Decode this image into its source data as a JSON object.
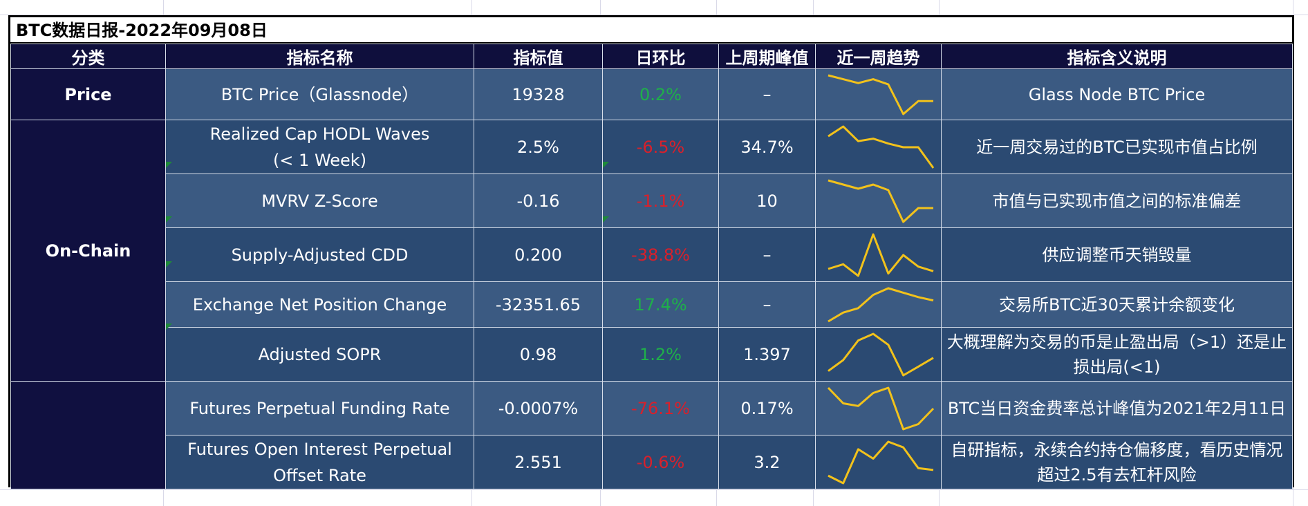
{
  "title": "BTC数据日报-2022年09月08日",
  "headers": [
    "分类",
    "指标名称",
    "指标值",
    "日环比",
    "上周期峰值",
    "近一周趋势",
    "指标含义说明"
  ],
  "categories": {
    "price": "Price",
    "onchain": "On-Chain",
    "futures": ""
  },
  "rows": [
    {
      "name": "BTC Price（Glassnode）",
      "value": "19328",
      "dod": "0.2%",
      "dod_sign": "pos",
      "peak": "–",
      "desc": "Glass Node BTC Price",
      "trend": [
        0.9,
        0.75,
        0.6,
        0.75,
        0.55,
        -0.6,
        -0.1,
        -0.1
      ]
    },
    {
      "name": "Realized Cap HODL Waves\n(< 1 Week)",
      "value": "2.5%",
      "dod": "-6.5%",
      "dod_sign": "neg",
      "peak": "34.7%",
      "desc": "近一周交易过的BTC已实现市值占比例",
      "trend": [
        0.55,
        0.95,
        0.35,
        0.45,
        0.25,
        0.1,
        0.1,
        -0.75
      ]
    },
    {
      "name": "MVRV Z-Score",
      "value": "-0.16",
      "dod": "-1.1%",
      "dod_sign": "neg",
      "peak": "10",
      "desc": "市值与已实现市值之间的标准偏差",
      "trend": [
        0.9,
        0.75,
        0.6,
        0.75,
        0.55,
        -0.6,
        -0.1,
        -0.1
      ]
    },
    {
      "name": "Supply-Adjusted CDD",
      "value": "0.200",
      "dod": "-38.8%",
      "dod_sign": "neg",
      "peak": "–",
      "desc": "供应调整币天销毁量",
      "trend": [
        0.2,
        0.3,
        0.05,
        0.95,
        0.1,
        0.5,
        0.25,
        0.15
      ]
    },
    {
      "name": "Exchange Net Position Change",
      "value": "-32351.65",
      "dod": "17.4%",
      "dod_sign": "pos",
      "peak": "–",
      "desc": "交易所BTC近30天累计余额变化",
      "trend": [
        -0.9,
        -0.5,
        -0.3,
        0.3,
        0.6,
        0.4,
        0.2,
        0.05
      ]
    },
    {
      "name": "Adjusted SOPR",
      "value": "0.98",
      "dod": "1.2%",
      "dod_sign": "pos",
      "peak": "1.397",
      "desc": "大概理解为交易的币是止盈出局（>1）还是止损出局(<1)",
      "trend": [
        0.1,
        0.35,
        0.8,
        0.95,
        0.7,
        0.0,
        0.2,
        0.4
      ]
    },
    {
      "name": "Futures Perpetual Funding Rate",
      "value": "-0.0007%",
      "dod": "-76.1%",
      "dod_sign": "neg",
      "peak": "0.17%",
      "desc": "BTC当日资金费率总计峰值为2021年2月11日",
      "trend": [
        0.95,
        0.35,
        0.25,
        0.75,
        0.95,
        -0.65,
        -0.45,
        0.15
      ]
    },
    {
      "name": "Futures Open Interest Perpetual\nOffset Rate",
      "value": "2.551",
      "dod": "-0.6%",
      "dod_sign": "neg",
      "peak": "3.2",
      "desc": "自研指标，永续合约持仓偏移度，看历史情况超过2.5有去杠杆风险",
      "trend": [
        0.1,
        -0.1,
        0.8,
        0.55,
        1.0,
        0.85,
        0.3,
        0.25
      ]
    }
  ]
}
